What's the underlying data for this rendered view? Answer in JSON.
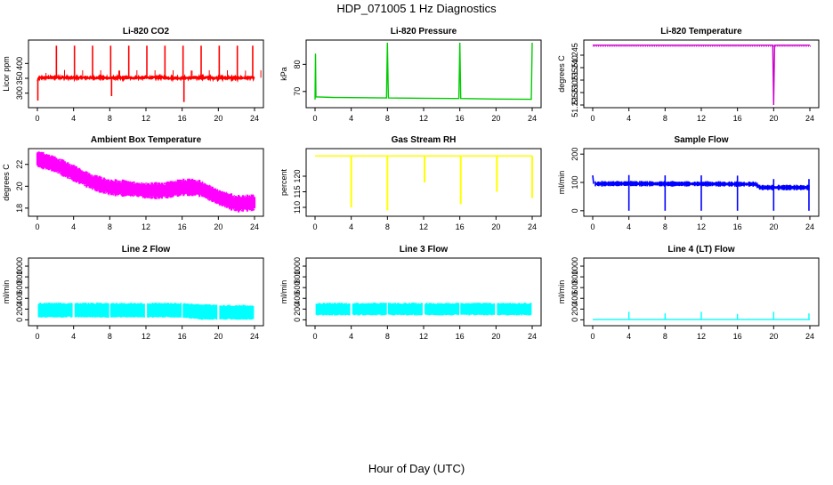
{
  "page": {
    "title": "HDP_071005  1 Hz Diagnostics",
    "xlabel": "Hour of Day (UTC)"
  },
  "colors": {
    "axis": "#000000",
    "red": "#ff0000",
    "green": "#00cc00",
    "magenta": "#ff00ff",
    "yellow": "#ffff00",
    "blue": "#0000ff",
    "cyan": "#00ffff"
  },
  "chart_data": [
    {
      "type": "line",
      "title": "Li-820 CO2",
      "ylabel": "Licor ppm",
      "color": "#ff0000",
      "xlim": [
        0,
        24
      ],
      "ylim": [
        260,
        470
      ],
      "xticks": [
        "0",
        "4",
        "8",
        "12",
        "16",
        "20",
        "24"
      ],
      "yticks": [
        300,
        350,
        400
      ],
      "series": [
        {
          "name": "baseline",
          "x": [
            0,
            0.2,
            0.5,
            1,
            2,
            4,
            6,
            8,
            10,
            12,
            14,
            16,
            18,
            20,
            22,
            24
          ],
          "y": [
            340,
            352,
            352,
            352,
            353,
            352,
            352,
            351,
            352,
            352,
            352,
            351,
            352,
            352,
            351,
            352
          ]
        },
        {
          "name": "spikes",
          "x": [
            0.05,
            2.1,
            4.1,
            6.1,
            8.1,
            8.2,
            10.1,
            12.1,
            14.1,
            16.1,
            16.2,
            18.1,
            20.1,
            22.1,
            23.8
          ],
          "y": [
            275,
            460,
            460,
            460,
            460,
            290,
            460,
            460,
            460,
            460,
            270,
            460,
            460,
            460,
            460
          ]
        }
      ]
    },
    {
      "type": "line",
      "title": "Li-820 Pressure",
      "ylabel": "kPa",
      "color": "#00cc00",
      "xlim": [
        0,
        24
      ],
      "ylim": [
        65,
        88
      ],
      "xticks": [
        "0",
        "4",
        "8",
        "12",
        "16",
        "20",
        "24"
      ],
      "yticks": [
        70,
        80
      ],
      "series": [
        {
          "name": "pressure",
          "x": [
            0,
            0.05,
            0.1,
            0.3,
            2,
            7.9,
            8.0,
            8.1,
            12,
            15.9,
            16.0,
            16.1,
            20,
            23.9,
            24.0
          ],
          "y": [
            67,
            84,
            68,
            68,
            67.8,
            67.6,
            88,
            67.6,
            67.5,
            67.4,
            88,
            67.4,
            67.2,
            67.1,
            88
          ]
        }
      ]
    },
    {
      "type": "line",
      "title": "Li-820 Temperature",
      "ylabel": "degrees C",
      "color": "#cc00cc",
      "xlim": [
        0,
        24
      ],
      "ylim": [
        51.225,
        51.25
      ],
      "xticks": [
        "0",
        "4",
        "8",
        "12",
        "16",
        "20",
        "24"
      ],
      "yticks": [
        "51.225",
        "51.230",
        "51.235",
        "51.240",
        "51.245"
      ],
      "series": [
        {
          "name": "temperature",
          "x": [
            0,
            8,
            16,
            19.9,
            20.0,
            20.1,
            24
          ],
          "y": [
            51.249,
            51.249,
            51.249,
            51.249,
            51.225,
            51.249,
            51.249
          ]
        }
      ]
    },
    {
      "type": "line",
      "title": "Ambient Box Temperature",
      "ylabel": "degrees C",
      "color": "#ff00ff",
      "xlim": [
        0,
        24
      ],
      "ylim": [
        17.5,
        23.2
      ],
      "xticks": [
        "0",
        "4",
        "8",
        "12",
        "16",
        "20",
        "24"
      ],
      "yticks": [
        18,
        20,
        22
      ],
      "series": [
        {
          "name": "ambient",
          "x": [
            0,
            2,
            4,
            6,
            8,
            10,
            12,
            14,
            16,
            17,
            18,
            20,
            22,
            24
          ],
          "y": [
            22.5,
            22.0,
            21.2,
            20.4,
            19.9,
            19.8,
            19.6,
            19.6,
            19.9,
            19.9,
            19.8,
            19.0,
            18.4,
            18.5
          ]
        }
      ]
    },
    {
      "type": "line",
      "title": "Gas Stream RH",
      "ylabel": "percent",
      "color": "#ffff00",
      "xlim": [
        0,
        24
      ],
      "ylim": [
        108,
        128
      ],
      "xticks": [
        "0",
        "4",
        "8",
        "12",
        "16",
        "20",
        "24"
      ],
      "yticks": [
        110,
        115,
        120
      ],
      "series": [
        {
          "name": "baseline",
          "x": [
            0,
            24
          ],
          "y": [
            126.5,
            126.5
          ]
        },
        {
          "name": "dips",
          "x": [
            4.0,
            8.0,
            12.1,
            16.1,
            20.1,
            24.0
          ],
          "y": [
            110,
            109,
            118,
            111,
            115,
            113
          ]
        }
      ]
    },
    {
      "type": "line",
      "title": "Sample Flow",
      "ylabel": "ml/min",
      "color": "#0000ff",
      "xlim": [
        0,
        24
      ],
      "ylim": [
        -10,
        210
      ],
      "xticks": [
        "0",
        "4",
        "8",
        "12",
        "16",
        "20",
        "24"
      ],
      "yticks": [
        0,
        100,
        200
      ],
      "series": [
        {
          "name": "flow",
          "x": [
            0,
            0.1,
            0.3,
            4,
            8,
            12,
            16,
            18,
            18.5,
            20,
            24
          ],
          "y": [
            125,
            95,
            95,
            96,
            95,
            95,
            94,
            94,
            82,
            82,
            82
          ]
        },
        {
          "name": "dips",
          "x": [
            4.0,
            8.0,
            12.0,
            16.0,
            20.0,
            23.9
          ],
          "y": [
            0,
            0,
            0,
            0,
            0,
            0
          ]
        }
      ]
    },
    {
      "type": "line",
      "title": "Line 2 Flow",
      "ylabel": "ml/min",
      "color": "#00ffff",
      "xlim": [
        0,
        24
      ],
      "ylim": [
        -60,
        1100
      ],
      "xticks": [
        "0",
        "4",
        "8",
        "12",
        "16",
        "20",
        "24"
      ],
      "yticks": [
        0,
        200,
        400,
        600,
        800,
        1000
      ],
      "series": [
        {
          "name": "band-top",
          "x": [
            0,
            4,
            8,
            12,
            16,
            18,
            20,
            24
          ],
          "y": [
            320,
            320,
            320,
            320,
            320,
            300,
            280,
            280
          ]
        },
        {
          "name": "band-bottom",
          "x": [
            0,
            4,
            8,
            12,
            16,
            18,
            20,
            24
          ],
          "y": [
            40,
            40,
            40,
            40,
            40,
            0,
            0,
            0
          ]
        }
      ]
    },
    {
      "type": "line",
      "title": "Line 3 Flow",
      "ylabel": "ml/min",
      "color": "#00ffff",
      "xlim": [
        0,
        24
      ],
      "ylim": [
        -60,
        1100
      ],
      "xticks": [
        "0",
        "4",
        "8",
        "12",
        "16",
        "20",
        "24"
      ],
      "yticks": [
        0,
        200,
        400,
        600,
        800,
        1000
      ],
      "series": [
        {
          "name": "band-top",
          "x": [
            0,
            24
          ],
          "y": [
            320,
            320
          ]
        },
        {
          "name": "band-bottom",
          "x": [
            0,
            24
          ],
          "y": [
            80,
            80
          ]
        }
      ]
    },
    {
      "type": "line",
      "title": "Line 4 (LT) Flow",
      "ylabel": "ml/min",
      "color": "#00ffff",
      "xlim": [
        0,
        24
      ],
      "ylim": [
        -60,
        1100
      ],
      "xticks": [
        "0",
        "4",
        "8",
        "12",
        "16",
        "20",
        "24"
      ],
      "yticks": [
        0,
        200,
        400,
        600,
        800,
        1000
      ],
      "series": [
        {
          "name": "baseline",
          "x": [
            0,
            24
          ],
          "y": [
            5,
            5
          ]
        },
        {
          "name": "spikes",
          "x": [
            4.0,
            8.0,
            12.0,
            16.0,
            20.0,
            23.9
          ],
          "y": [
            150,
            120,
            150,
            110,
            150,
            120
          ]
        }
      ]
    }
  ]
}
